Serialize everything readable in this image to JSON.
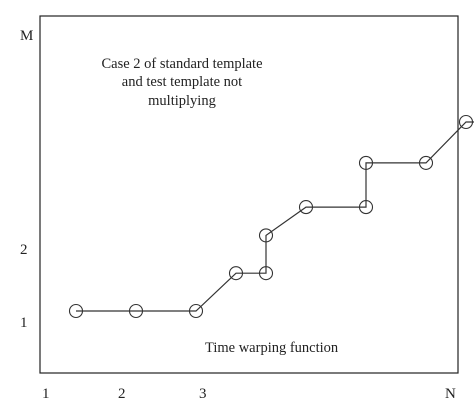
{
  "chart_data": {
    "type": "line",
    "title": "",
    "xlabel": "",
    "ylabel": "",
    "x_ticks": [
      "1",
      "2",
      "3",
      "N"
    ],
    "y_ticks": [
      "1",
      "2",
      "M"
    ],
    "annotations": {
      "case_lines": [
        "Case 2 of standard template",
        "and test template not",
        "multiplying"
      ],
      "function_label": "Time warping function"
    },
    "series": [
      {
        "x": [
          1.3,
          1.9,
          2.5,
          2.9,
          3.2,
          3.2,
          3.6,
          4.2,
          4.2,
          4.8,
          5.2,
          5.8,
          6.2,
          6.8
        ],
        "y": [
          1.0,
          1.0,
          1.0,
          1.6,
          1.6,
          2.2,
          2.65,
          2.65,
          3.35,
          3.35,
          4.0,
          4.0,
          4.65,
          4.65
        ]
      }
    ],
    "xlim": [
      1,
      7
    ],
    "ylim": [
      1,
      6.5
    ],
    "marker": "open-circle",
    "grid": false,
    "colors": {
      "line": "#333333",
      "axis": "#222222"
    }
  }
}
